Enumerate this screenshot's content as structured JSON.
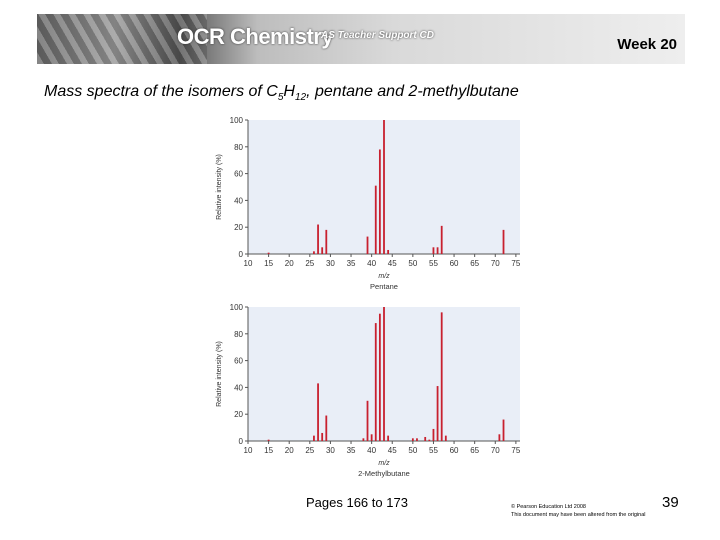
{
  "header": {
    "brand": "OCR Chemistry",
    "brand_sub": "AS Teacher Support CD",
    "week": "Week 20"
  },
  "title": {
    "prefix": "Mass spectra of the isomers of C",
    "sub1": "5",
    "mid": "H",
    "sub2": "12",
    "suffix": ", pentane and 2-methylbutane"
  },
  "chart_data": [
    {
      "type": "bar",
      "title": "Pentane",
      "xlabel": "m/z",
      "ylabel": "Relative intensity (%)",
      "xlim": [
        10,
        76
      ],
      "ylim": [
        0,
        100
      ],
      "xticks": [
        10,
        15,
        20,
        25,
        30,
        35,
        40,
        45,
        50,
        55,
        60,
        65,
        70,
        75
      ],
      "yticks": [
        0,
        20,
        40,
        60,
        80,
        100
      ],
      "grid": false,
      "color": "#c8202f",
      "x": [
        15,
        26,
        27,
        28,
        29,
        39,
        41,
        42,
        43,
        44,
        55,
        56,
        57,
        72
      ],
      "values": [
        1,
        2,
        22,
        5,
        18,
        13,
        51,
        78,
        100,
        3,
        5,
        5,
        21,
        18
      ]
    },
    {
      "type": "bar",
      "title": "2-Methylbutane",
      "xlabel": "m/z",
      "ylabel": "Relative intensity (%)",
      "xlim": [
        10,
        76
      ],
      "ylim": [
        0,
        100
      ],
      "xticks": [
        10,
        15,
        20,
        25,
        30,
        35,
        40,
        45,
        50,
        55,
        60,
        65,
        70,
        75
      ],
      "yticks": [
        0,
        20,
        40,
        60,
        80,
        100
      ],
      "grid": false,
      "color": "#c8202f",
      "x": [
        15,
        26,
        27,
        28,
        29,
        38,
        39,
        40,
        41,
        42,
        43,
        44,
        50,
        51,
        53,
        54,
        55,
        56,
        57,
        58,
        71,
        72
      ],
      "values": [
        1,
        4,
        43,
        6,
        19,
        2,
        30,
        5,
        88,
        95,
        100,
        4,
        2,
        2,
        3,
        1,
        9,
        41,
        96,
        4,
        5,
        16
      ]
    }
  ],
  "footer": {
    "pages": "Pages 166 to 173",
    "copyright_line1": "© Pearson Education Ltd 2008",
    "copyright_line2": "This document may have been altered from the original",
    "page_number": "39"
  }
}
